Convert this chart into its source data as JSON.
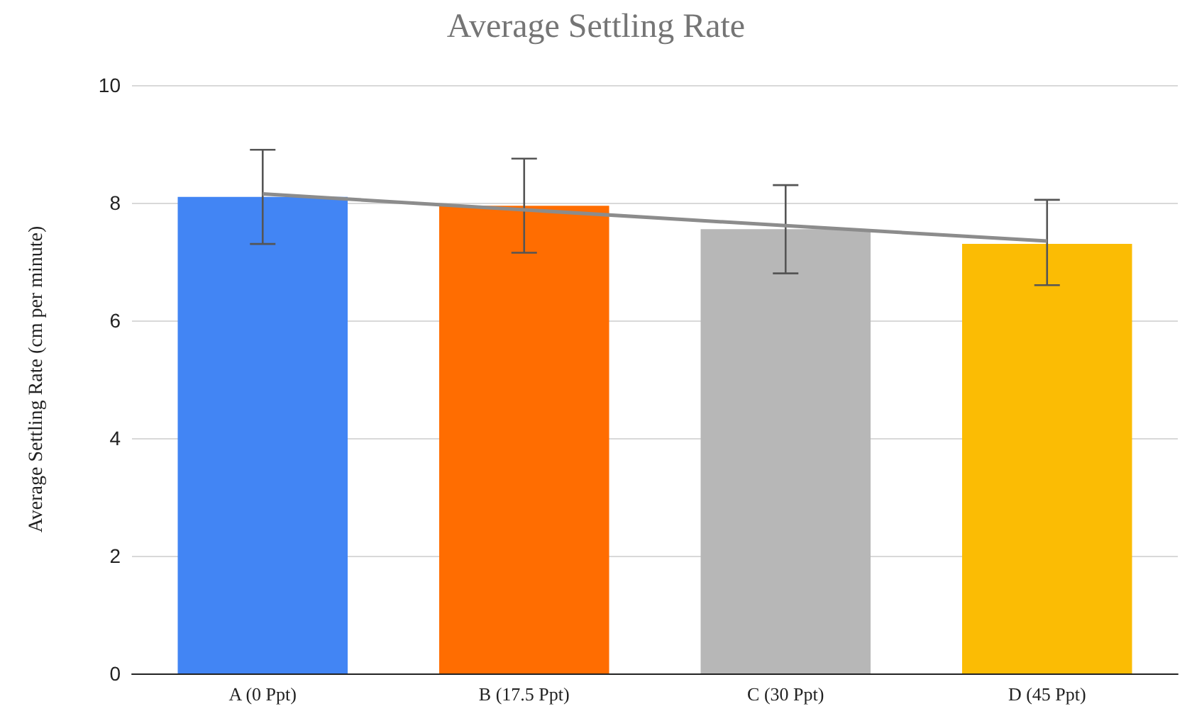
{
  "chart_data": {
    "type": "bar",
    "title": "Average Settling Rate",
    "ylabel": "Average Settling Rate (cm per minute)",
    "categories": [
      "A (0 Ppt)",
      "B (17.5 Ppt)",
      "C (30 Ppt)",
      "D (45 Ppt)"
    ],
    "series": [
      {
        "values": [
          8.1,
          7.95,
          7.55,
          7.3
        ],
        "colors": [
          "#4285f4",
          "#ff6d01",
          "#b7b7b7",
          "#fbbc04"
        ],
        "errors": [
          [
            7.3,
            8.9
          ],
          [
            7.15,
            8.75
          ],
          [
            6.8,
            8.3
          ],
          [
            6.6,
            8.05
          ]
        ]
      },
      {
        "type": "line",
        "color": "#8c8c8c",
        "x": [
          "A (0 Ppt)",
          "B (17.5 Ppt)",
          "C (30 Ppt)",
          "D (45 Ppt)"
        ],
        "values": [
          8.15,
          7.88,
          7.61,
          7.35
        ]
      }
    ],
    "ylim": [
      0,
      10
    ],
    "yticks": [
      0,
      2,
      4,
      6,
      8,
      10
    ],
    "grid": "y",
    "marker": "none"
  }
}
